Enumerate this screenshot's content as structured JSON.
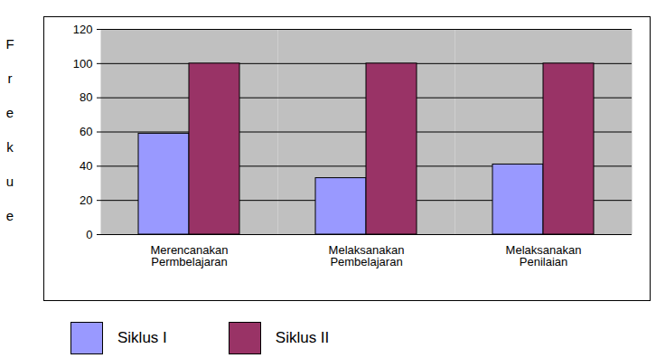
{
  "chart_data": {
    "type": "bar",
    "y_label": "Frekue",
    "categories": [
      "Merencanakan Permbelajaran",
      "Melaksanakan Pembelajaran",
      "Melaksanakan Penilaian"
    ],
    "series": [
      {
        "name": "Siklus I",
        "color": "#9999ff",
        "values": [
          59,
          33,
          41
        ]
      },
      {
        "name": "Siklus II",
        "color": "#993366",
        "values": [
          100,
          100,
          100
        ]
      }
    ],
    "ylim": [
      0,
      120
    ],
    "yticks": [
      0,
      20,
      40,
      60,
      80,
      100,
      120
    ],
    "grid": true,
    "legend": "bottom"
  }
}
